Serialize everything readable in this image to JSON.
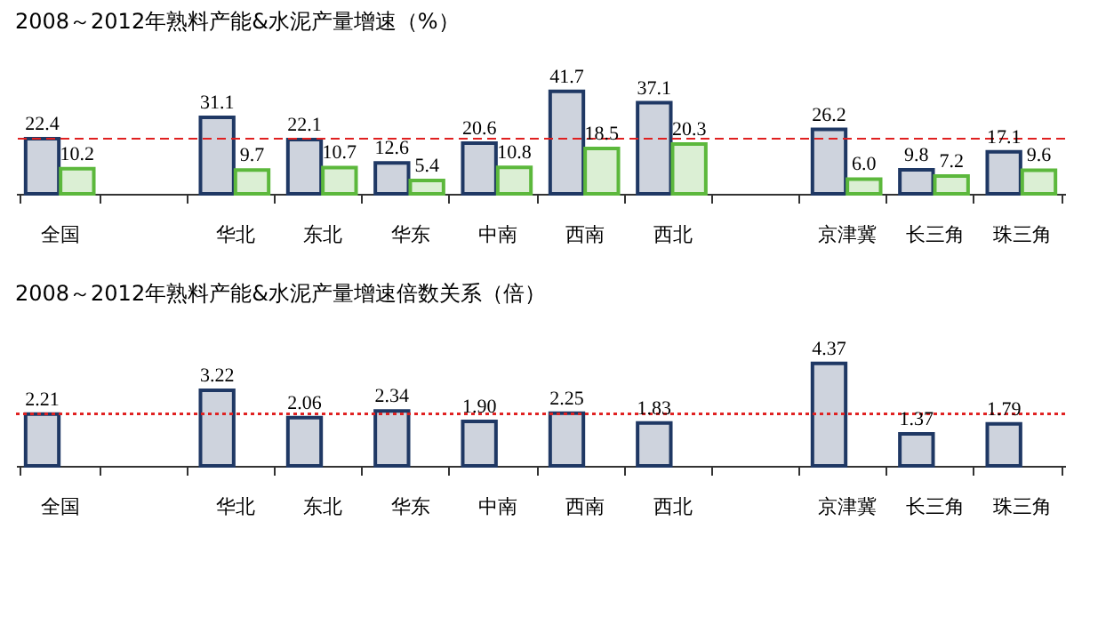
{
  "chart_data": [
    {
      "type": "bar",
      "title": "2008～2012年熟料产能&水泥产量增速（%）",
      "categories": [
        "全国",
        null,
        "华北",
        "东北",
        "华东",
        "中南",
        "西南",
        "西北",
        null,
        "京津冀",
        "长三角",
        "珠三角"
      ],
      "series": [
        {
          "color": "#1f3864",
          "values": [
            22.4,
            null,
            31.1,
            22.1,
            12.6,
            20.6,
            41.7,
            37.1,
            null,
            26.2,
            9.8,
            17.1
          ],
          "value_labels": [
            "22.4",
            null,
            "31.1",
            "22.1",
            "12.6",
            "20.6",
            "41.7",
            "37.1",
            null,
            "26.2",
            "9.8",
            "17.1"
          ]
        },
        {
          "color": "#5cb83c",
          "values": [
            10.2,
            null,
            9.7,
            10.7,
            5.4,
            10.8,
            18.5,
            20.3,
            null,
            6.0,
            7.2,
            9.6
          ],
          "value_labels": [
            "10.2",
            null,
            "9.7",
            "10.7",
            "5.4",
            "10.8",
            "18.5",
            "20.3",
            null,
            "6.0",
            "7.2",
            "9.6"
          ]
        }
      ],
      "tick_labels": "x",
      "grid": false,
      "ref_lines": [
        {
          "axis": "y",
          "value": 22.4,
          "color": "#e02020",
          "line_style": "dashed"
        }
      ]
    },
    {
      "type": "bar",
      "title": "2008～2012年熟料产能&水泥产量增速倍数关系（倍）",
      "categories": [
        "全国",
        null,
        "华北",
        "东北",
        "华东",
        "中南",
        "西南",
        "西北",
        null,
        "京津冀",
        "长三角",
        "珠三角"
      ],
      "color": "#1f3864",
      "values": [
        2.21,
        null,
        3.22,
        2.06,
        2.34,
        1.9,
        2.25,
        1.83,
        null,
        4.37,
        1.37,
        1.79
      ],
      "value_labels": [
        "2.21",
        null,
        "3.22",
        "2.06",
        "2.34",
        "1.90",
        "2.25",
        "1.83",
        null,
        "4.37",
        "1.37",
        "1.79"
      ],
      "tick_labels": "x",
      "grid": false,
      "ref_lines": [
        {
          "axis": "y",
          "value": 2.21,
          "color": "#e02020",
          "line_style": "dotted"
        }
      ]
    }
  ]
}
